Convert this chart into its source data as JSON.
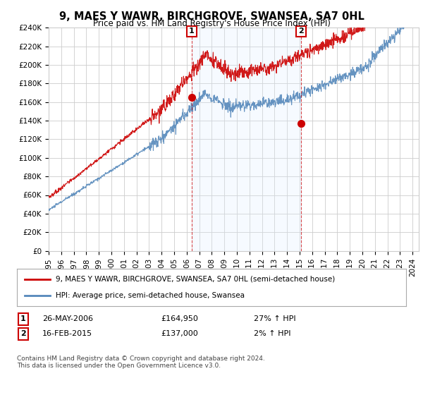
{
  "title": "9, MAES Y WAWR, BIRCHGROVE, SWANSEA, SA7 0HL",
  "subtitle": "Price paid vs. HM Land Registry's House Price Index (HPI)",
  "legend_line1": "9, MAES Y WAWR, BIRCHGROVE, SWANSEA, SA7 0HL (semi-detached house)",
  "legend_line2": "HPI: Average price, semi-detached house, Swansea",
  "annotation1_date": "26-MAY-2006",
  "annotation1_price": "£164,950",
  "annotation1_hpi": "27% ↑ HPI",
  "annotation2_date": "16-FEB-2015",
  "annotation2_price": "£137,000",
  "annotation2_hpi": "2% ↑ HPI",
  "footer": "Contains HM Land Registry data © Crown copyright and database right 2024.\nThis data is licensed under the Open Government Licence v3.0.",
  "yticks": [
    0,
    20000,
    40000,
    60000,
    80000,
    100000,
    120000,
    140000,
    160000,
    180000,
    200000,
    220000,
    240000
  ],
  "ytick_labels": [
    "£0",
    "£20K",
    "£40K",
    "£60K",
    "£80K",
    "£100K",
    "£120K",
    "£140K",
    "£160K",
    "£180K",
    "£200K",
    "£220K",
    "£240K"
  ],
  "red_color": "#cc0000",
  "blue_color": "#5588bb",
  "shade_color": "#ddeeff",
  "background_color": "#ffffff",
  "plot_bg_color": "#ffffff",
  "grid_color": "#cccccc",
  "sale1_x": 2006.4,
  "sale1_y": 164950,
  "sale2_x": 2015.12,
  "sale2_y": 137000,
  "xmin": 1995,
  "xmax": 2024.5,
  "ymin": 0,
  "ymax": 240000
}
